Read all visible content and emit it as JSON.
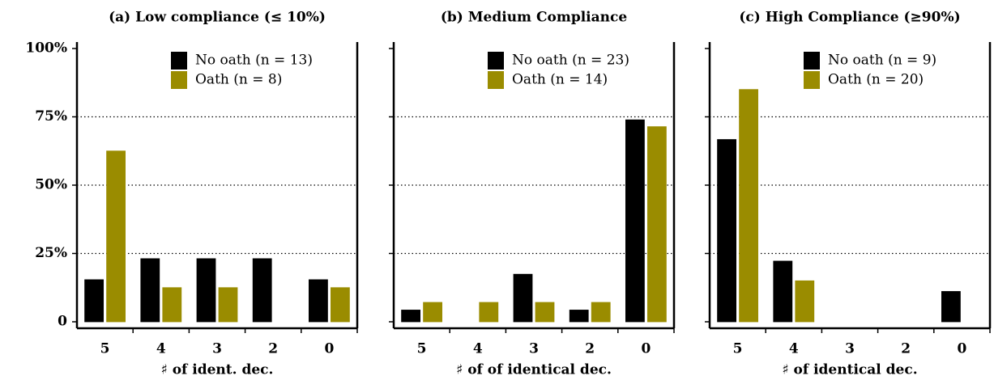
{
  "chart_data": [
    {
      "type": "bar",
      "title": "(a) Low compliance (≤ 10%)",
      "x_label": "♯ of ident. dec.",
      "categories": [
        "5",
        "4",
        "3",
        "2",
        "0"
      ],
      "series": [
        {
          "name": "No oath (n = 13)",
          "color": "#000000",
          "values": [
            15.4,
            23.1,
            23.1,
            23.1,
            15.4
          ]
        },
        {
          "name": "Oath (n = 8)",
          "color": "#9a8c00",
          "values": [
            62.5,
            12.5,
            12.5,
            0,
            12.5
          ]
        }
      ],
      "ylim": [
        0,
        100
      ],
      "yticks": [
        0,
        {
          "value": 25,
          "label": "25%"
        },
        {
          "value": 50,
          "label": "50%"
        },
        {
          "value": 75,
          "label": "75%"
        },
        {
          "value": 100,
          "label": "100%"
        }
      ],
      "grid": true
    },
    {
      "type": "bar",
      "title": "(b) Medium Compliance",
      "x_label": "♯ of of identical dec.",
      "categories": [
        "5",
        "4",
        "3",
        "2",
        "0"
      ],
      "series": [
        {
          "name": "No oath (n = 23)",
          "color": "#000000",
          "values": [
            4.3,
            0,
            17.4,
            4.3,
            73.9
          ]
        },
        {
          "name": "Oath (n = 14)",
          "color": "#9a8c00",
          "values": [
            7.1,
            7.1,
            7.1,
            7.1,
            71.4
          ]
        }
      ],
      "ylim": [
        0,
        100
      ],
      "yticks": [
        0,
        {
          "value": 25,
          "label": "25%"
        },
        {
          "value": 50,
          "label": "50%"
        },
        {
          "value": 75,
          "label": "75%"
        },
        {
          "value": 100,
          "label": "100%"
        }
      ],
      "grid": true
    },
    {
      "type": "bar",
      "title": "(c) High Compliance (≥90%)",
      "x_label": "♯ of identical dec.",
      "categories": [
        "5",
        "4",
        "3",
        "2",
        "0"
      ],
      "series": [
        {
          "name": "No oath (n = 9)",
          "color": "#000000",
          "values": [
            66.7,
            22.2,
            0,
            0,
            11.1
          ]
        },
        {
          "name": "Oath (n = 20)",
          "color": "#9a8c00",
          "values": [
            85,
            15,
            0,
            0,
            0
          ]
        }
      ],
      "ylim": [
        0,
        100
      ],
      "yticks": [
        0,
        {
          "value": 25,
          "label": "25%"
        },
        {
          "value": 50,
          "label": "50%"
        },
        {
          "value": 75,
          "label": "75%"
        },
        {
          "value": 100,
          "label": "100%"
        }
      ],
      "grid": true
    }
  ]
}
